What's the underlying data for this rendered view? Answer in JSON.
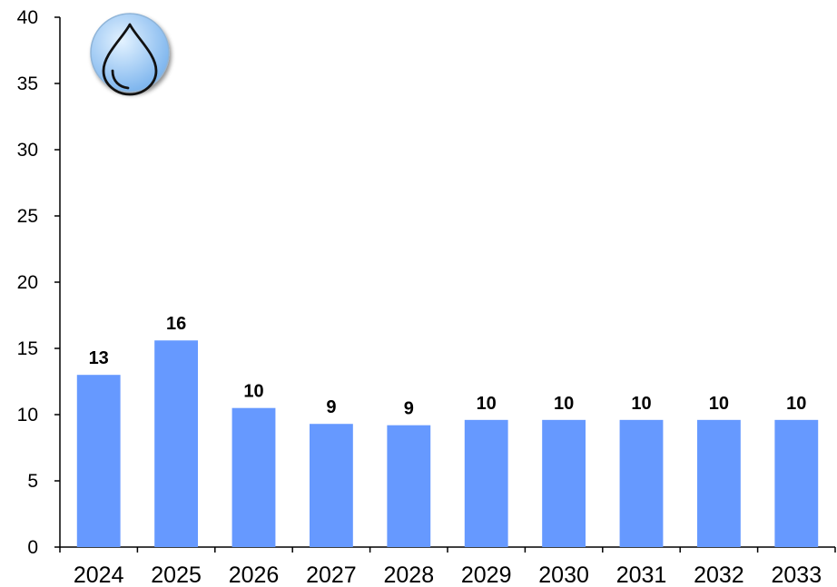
{
  "chart_data": {
    "type": "bar",
    "categories": [
      "2024",
      "2025",
      "2026",
      "2027",
      "2028",
      "2029",
      "2030",
      "2031",
      "2032",
      "2033"
    ],
    "values": [
      13.0,
      15.6,
      10.5,
      9.3,
      9.2,
      9.6,
      9.6,
      9.6,
      9.6,
      9.6
    ],
    "data_labels": [
      "13",
      "16",
      "10",
      "9",
      "9",
      "10",
      "10",
      "10",
      "10",
      "10"
    ],
    "ylim": [
      0,
      40
    ],
    "yticks": [
      "0",
      "5",
      "10",
      "15",
      "20",
      "25",
      "30",
      "35",
      "40"
    ],
    "title": "",
    "xlabel": "",
    "ylabel": "",
    "grid": false,
    "legend": "none",
    "bar_color": "#6699ff"
  },
  "icon": {
    "name": "water-drop-icon",
    "colors": {
      "light": "#d6ecff",
      "dark": "#7fb6ee"
    }
  }
}
